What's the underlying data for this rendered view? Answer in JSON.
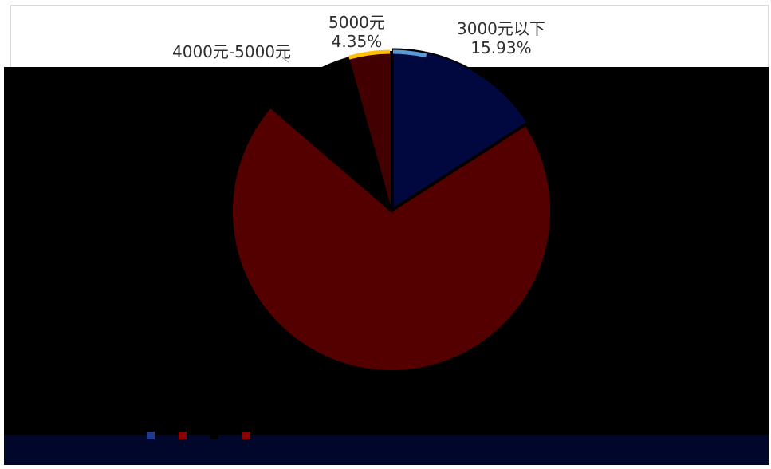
{
  "chart_data": {
    "type": "pie",
    "slices": [
      {
        "label": "3000元以下",
        "percent_text": "15.93%",
        "value": 15.93,
        "color": "#00083f"
      },
      {
        "label": "",
        "percent_text": "",
        "value": 70.36,
        "color": "#550000"
      },
      {
        "label": "4000元-5000元",
        "percent_text": "",
        "value": 9.36,
        "color": "#000000"
      },
      {
        "label": "5000元",
        "percent_text": "4.35%",
        "value": 4.35,
        "color": "#420000"
      }
    ],
    "accent_colors": {
      "blue_edge": "#5b9bd5",
      "gold_edge": "#ffc000"
    },
    "legend": [
      {
        "text": "",
        "color": "#1f3a93"
      },
      {
        "text": "",
        "color": "#8b0000"
      },
      {
        "text": "",
        "color": "#000000"
      },
      {
        "text": "",
        "color": "#8b0000"
      }
    ]
  }
}
